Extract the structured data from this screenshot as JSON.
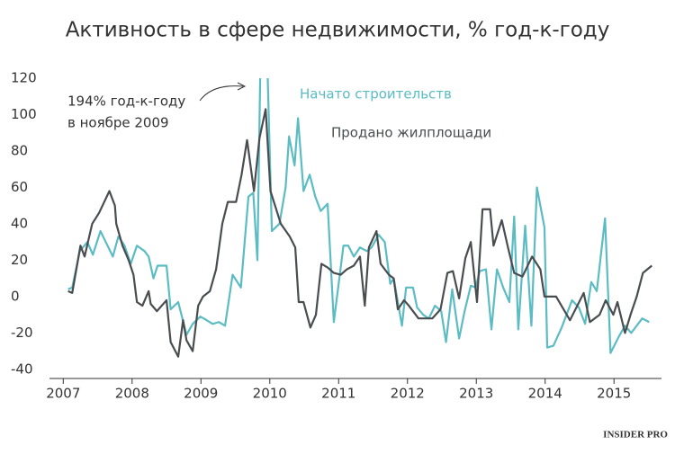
{
  "chart_data": {
    "type": "line",
    "title": "Активность в сфере недвижимости, % год-к-году",
    "annotation": [
      "194% год-к-году",
      "в ноябре 2009"
    ],
    "brand": "INSIDER PRO",
    "xlim": [
      2006.8,
      2015.69
    ],
    "xticks": [
      2007,
      2008,
      2009,
      2010,
      2011,
      2012,
      2013,
      2014,
      2015
    ],
    "ylim": [
      -45,
      120
    ],
    "yticks": [
      -40,
      -20,
      0,
      20,
      40,
      60,
      80,
      100,
      120
    ],
    "grid": false,
    "series": [
      {
        "name": "Начато строительств",
        "color": "#5bbcc3",
        "x": [
          2007.07,
          2007.13,
          2007.24,
          2007.35,
          2007.43,
          2007.54,
          2007.63,
          2007.72,
          2007.8,
          2007.89,
          2007.98,
          2008.07,
          2008.18,
          2008.24,
          2008.31,
          2008.37,
          2008.5,
          2008.56,
          2008.67,
          2008.79,
          2008.88,
          2008.99,
          2009.04,
          2009.17,
          2009.26,
          2009.35,
          2009.46,
          2009.58,
          2009.69,
          2009.76,
          2009.82,
          2009.89,
          2009.97,
          2010.03,
          2010.14,
          2010.23,
          2010.28,
          2010.36,
          2010.41,
          2010.49,
          2010.58,
          2010.66,
          2010.74,
          2010.84,
          2010.93,
          2011.07,
          2011.14,
          2011.22,
          2011.31,
          2011.41,
          2011.48,
          2011.58,
          2011.67,
          2011.75,
          2011.8,
          2011.92,
          2011.98,
          2012.08,
          2012.14,
          2012.23,
          2012.31,
          2012.4,
          2012.49,
          2012.56,
          2012.65,
          2012.75,
          2012.83,
          2012.92,
          2012.99,
          2013.05,
          2013.14,
          2013.22,
          2013.3,
          2013.39,
          2013.48,
          2013.55,
          2013.61,
          2013.71,
          2013.8,
          2013.88,
          2013.99,
          2014.03,
          2014.12,
          2014.24,
          2014.39,
          2014.49,
          2014.58,
          2014.67,
          2014.75,
          2014.87,
          2014.95,
          2015.07,
          2015.16,
          2015.25,
          2015.41,
          2015.51
        ],
        "values": [
          4,
          5,
          25,
          30,
          23,
          36,
          29,
          22,
          33,
          28,
          18,
          28,
          25,
          22,
          10,
          17,
          17,
          -7,
          -3,
          -21,
          -15,
          -11,
          -12,
          -15,
          -14,
          -16,
          12,
          5,
          55,
          57,
          20,
          194,
          120,
          36,
          40,
          60,
          88,
          72,
          98,
          58,
          67,
          55,
          47,
          51,
          -14,
          28,
          28,
          22,
          27,
          25,
          27,
          34,
          30,
          7,
          10,
          -16,
          5,
          5,
          -6,
          -10,
          -12,
          -5,
          -8,
          -25,
          4,
          -23,
          -8,
          6,
          5,
          14,
          15,
          -18,
          15,
          5,
          -3,
          44,
          -18,
          39,
          -16,
          60,
          38,
          -28,
          -27,
          -17,
          -2,
          -6,
          -15,
          8,
          3,
          43,
          -31,
          -22,
          -16,
          -20,
          -12,
          -14
        ]
      },
      {
        "name": "Продано жилплощади",
        "color": "#4a4d50",
        "x": [
          2007.07,
          2007.13,
          2007.25,
          2007.31,
          2007.42,
          2007.52,
          2007.67,
          2007.75,
          2007.77,
          2007.86,
          2007.95,
          2008.02,
          2008.07,
          2008.15,
          2008.24,
          2008.27,
          2008.36,
          2008.5,
          2008.56,
          2008.67,
          2008.74,
          2008.79,
          2008.88,
          2008.96,
          2009.03,
          2009.13,
          2009.22,
          2009.31,
          2009.39,
          2009.51,
          2009.59,
          2009.67,
          2009.77,
          2009.85,
          2009.94,
          2010.01,
          2010.16,
          2010.29,
          2010.37,
          2010.42,
          2010.49,
          2010.59,
          2010.67,
          2010.75,
          2010.84,
          2010.93,
          2011.03,
          2011.12,
          2011.22,
          2011.31,
          2011.38,
          2011.44,
          2011.55,
          2011.61,
          2011.73,
          2011.8,
          2011.86,
          2011.95,
          2012.02,
          2012.16,
          2012.36,
          2012.48,
          2012.58,
          2012.66,
          2012.75,
          2012.84,
          2012.92,
          2013.01,
          2013.09,
          2013.2,
          2013.25,
          2013.37,
          2013.46,
          2013.55,
          2013.67,
          2013.81,
          2013.93,
          2013.99,
          2014.16,
          2014.36,
          2014.56,
          2014.65,
          2014.79,
          2014.88,
          2014.99,
          2015.05,
          2015.16,
          2015.24,
          2015.33,
          2015.42,
          2015.55
        ],
        "values": [
          3,
          2,
          28,
          22,
          40,
          46,
          58,
          50,
          40,
          28,
          20,
          12,
          -3,
          -5,
          3,
          -4,
          -8,
          -2,
          -25,
          -33,
          -13,
          -24,
          -30,
          -5,
          0,
          3,
          15,
          40,
          52,
          52,
          67,
          86,
          58,
          87,
          103,
          58,
          40,
          33,
          27,
          -3,
          -3,
          -17,
          -10,
          18,
          16,
          13,
          12,
          15,
          17,
          22,
          -5,
          27,
          36,
          18,
          12,
          10,
          -7,
          -2,
          -5,
          -12,
          -12,
          -7,
          13,
          14,
          -1,
          21,
          30,
          -3,
          48,
          48,
          28,
          42,
          27,
          13,
          11,
          22,
          15,
          0,
          0,
          -13,
          2,
          -14,
          -10,
          -2,
          -10,
          -3,
          -20,
          -10,
          0,
          13,
          17
        ]
      }
    ]
  }
}
